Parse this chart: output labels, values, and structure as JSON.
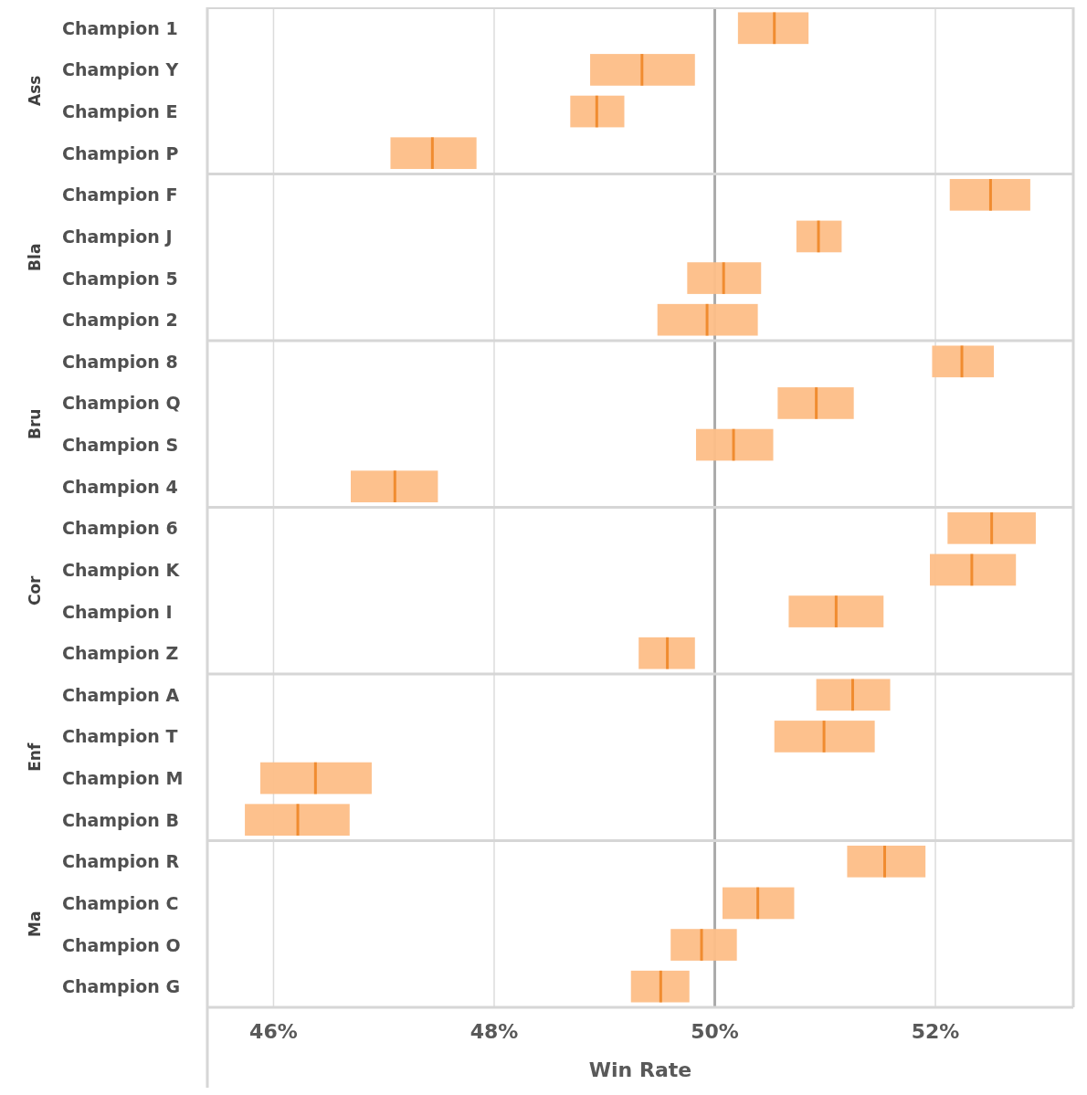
{
  "chart_data": {
    "type": "box",
    "orientation": "horizontal",
    "xlabel": "Win Rate",
    "categories": [
      "Champion 1",
      "Champion Y",
      "Champion E",
      "Champion P",
      "Champion F",
      "Champion J",
      "Champion 5",
      "Champion 2",
      "Champion 8",
      "Champion Q",
      "Champion S",
      "Champion 4",
      "Champion 6",
      "Champion K",
      "Champion I",
      "Champion Z",
      "Champion A",
      "Champion T",
      "Champion M",
      "Champion B",
      "Champion R",
      "Champion C",
      "Champion O",
      "Champion G"
    ],
    "series": [
      {
        "color": "#fdbe87",
        "boxes": [
          {
            "low": 50.21,
            "q1": 50.21,
            "median": 50.54,
            "q3": 50.85,
            "high": 50.85
          },
          {
            "low": 48.87,
            "q1": 48.87,
            "median": 49.34,
            "q3": 49.82,
            "high": 49.82
          },
          {
            "low": 48.69,
            "q1": 48.69,
            "median": 48.93,
            "q3": 49.18,
            "high": 49.18
          },
          {
            "low": 47.06,
            "q1": 47.06,
            "median": 47.44,
            "q3": 47.84,
            "high": 47.84
          },
          {
            "low": 52.13,
            "q1": 52.13,
            "median": 52.5,
            "q3": 52.86,
            "high": 52.86
          },
          {
            "low": 50.74,
            "q1": 50.74,
            "median": 50.94,
            "q3": 51.15,
            "high": 51.15
          },
          {
            "low": 49.75,
            "q1": 49.75,
            "median": 50.08,
            "q3": 50.42,
            "high": 50.42
          },
          {
            "low": 49.48,
            "q1": 49.48,
            "median": 49.93,
            "q3": 50.39,
            "high": 50.39
          },
          {
            "low": 51.97,
            "q1": 51.97,
            "median": 52.24,
            "q3": 52.53,
            "high": 52.53
          },
          {
            "low": 50.57,
            "q1": 50.57,
            "median": 50.92,
            "q3": 51.26,
            "high": 51.26
          },
          {
            "low": 49.83,
            "q1": 49.83,
            "median": 50.17,
            "q3": 50.53,
            "high": 50.53
          },
          {
            "low": 46.7,
            "q1": 46.7,
            "median": 47.1,
            "q3": 47.49,
            "high": 47.49
          },
          {
            "low": 52.11,
            "q1": 52.11,
            "median": 52.51,
            "q3": 52.91,
            "high": 52.91
          },
          {
            "low": 51.95,
            "q1": 51.95,
            "median": 52.33,
            "q3": 52.73,
            "high": 52.73
          },
          {
            "low": 50.67,
            "q1": 50.67,
            "median": 51.1,
            "q3": 51.53,
            "high": 51.53
          },
          {
            "low": 49.31,
            "q1": 49.31,
            "median": 49.57,
            "q3": 49.82,
            "high": 49.82
          },
          {
            "low": 50.92,
            "q1": 50.92,
            "median": 51.25,
            "q3": 51.59,
            "high": 51.59
          },
          {
            "low": 50.54,
            "q1": 50.54,
            "median": 50.99,
            "q3": 51.45,
            "high": 51.45
          },
          {
            "low": 45.88,
            "q1": 45.88,
            "median": 46.38,
            "q3": 46.89,
            "high": 46.89
          },
          {
            "low": 45.74,
            "q1": 45.74,
            "median": 46.22,
            "q3": 46.69,
            "high": 46.69
          },
          {
            "low": 51.2,
            "q1": 51.2,
            "median": 51.54,
            "q3": 51.91,
            "high": 51.91
          },
          {
            "low": 50.07,
            "q1": 50.07,
            "median": 50.39,
            "q3": 50.72,
            "high": 50.72
          },
          {
            "low": 49.6,
            "q1": 49.6,
            "median": 49.88,
            "q3": 50.2,
            "high": 50.2
          },
          {
            "low": 49.24,
            "q1": 49.24,
            "median": 49.51,
            "q3": 49.77,
            "high": 49.77
          }
        ]
      }
    ],
    "xlim": [
      45.4,
      53.25
    ],
    "xticks": [
      {
        "value": 46,
        "label": "46%"
      },
      {
        "value": 48,
        "label": "48%"
      },
      {
        "value": 50,
        "label": "50%"
      },
      {
        "value": 52,
        "label": "52%"
      }
    ],
    "grid": "x",
    "ref_lines": [
      {
        "axis": "x",
        "value": 50,
        "color": "#ababab"
      }
    ],
    "annotations": [
      "Ass",
      "Bla",
      "Bru",
      "Cor",
      "Enf",
      "Ma"
    ]
  }
}
